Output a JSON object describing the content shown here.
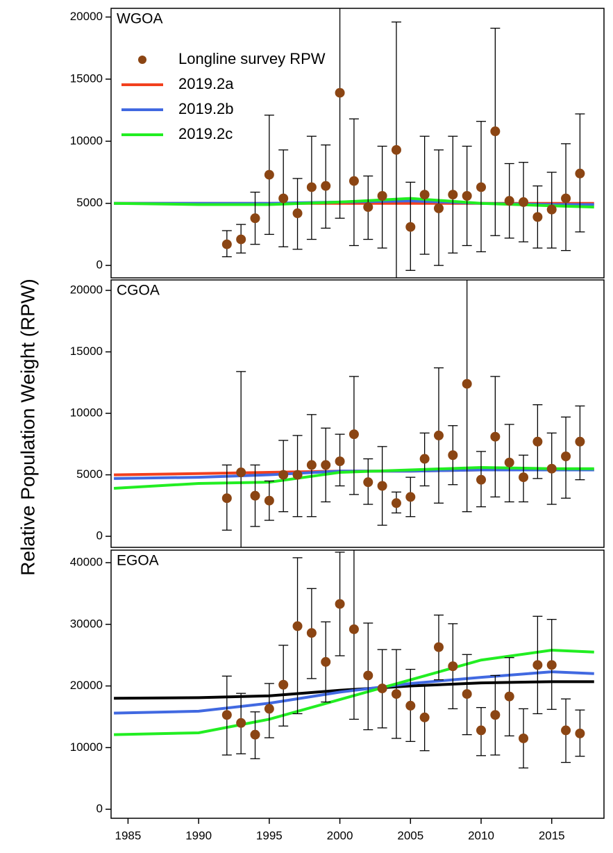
{
  "chart_data": [
    {
      "type": "scatter",
      "title": "WGOA",
      "ylabel": "Relative Population Weight (RPW)",
      "legend": "upper left",
      "xlim": [
        1983.8,
        2018.7
      ],
      "ylim": [
        -1000,
        20700
      ],
      "yticks": [
        0,
        5000,
        10000,
        15000,
        20000
      ],
      "points": {
        "name": "Longline survey RPW",
        "color": "#8b4513",
        "x": [
          1992,
          1993,
          1994,
          1995,
          1996,
          1997,
          1998,
          1999,
          2000,
          2001,
          2002,
          2003,
          2004,
          2005,
          2006,
          2007,
          2008,
          2009,
          2010,
          2011,
          2012,
          2013,
          2014,
          2015,
          2016,
          2017
        ],
        "values": [
          1700,
          2100,
          3800,
          7300,
          5400,
          4200,
          6300,
          6400,
          13900,
          6800,
          4700,
          5600,
          9300,
          3100,
          5700,
          4600,
          5700,
          5600,
          6300,
          10800,
          5200,
          5100,
          3900,
          4500,
          5400,
          7400
        ],
        "lower": [
          700,
          1000,
          1700,
          2500,
          1500,
          1300,
          2100,
          3000,
          3800,
          1600,
          2100,
          1400,
          -1200,
          -400,
          900,
          0,
          1000,
          1600,
          1100,
          2400,
          2200,
          1900,
          1400,
          1400,
          1200,
          2700
        ],
        "upper": [
          2800,
          3300,
          5900,
          12100,
          9300,
          7000,
          10400,
          9700,
          22000,
          11800,
          7200,
          9600,
          19600,
          6700,
          10400,
          9300,
          10400,
          9600,
          11600,
          19100,
          8200,
          8300,
          6400,
          7500,
          9800,
          12200
        ]
      },
      "series": [
        {
          "name": "2019.2a",
          "color": "#f2401e",
          "x": [
            1984,
            1990,
            1995,
            2000,
            2005,
            2010,
            2015,
            2018
          ],
          "values": [
            5000,
            5000,
            5000,
            5000,
            5000,
            5000,
            5000,
            5000
          ]
        },
        {
          "name": "2019.2b",
          "color": "#4169e1",
          "x": [
            1984,
            1990,
            1995,
            2000,
            2005,
            2010,
            2015,
            2018
          ],
          "values": [
            5000,
            5000,
            5000,
            5100,
            5200,
            5000,
            4900,
            4900
          ]
        },
        {
          "name": "2019.2c",
          "color": "#22ee22",
          "x": [
            1984,
            1990,
            1995,
            2000,
            2005,
            2010,
            2015,
            2018
          ],
          "values": [
            5000,
            4900,
            4900,
            5100,
            5400,
            5000,
            4800,
            4700
          ]
        }
      ]
    },
    {
      "type": "scatter",
      "title": "CGOA",
      "xlim": [
        1983.8,
        2018.7
      ],
      "ylim": [
        -900,
        20850
      ],
      "yticks": [
        0,
        5000,
        10000,
        15000,
        20000
      ],
      "points": {
        "color": "#8b4513",
        "x": [
          1992,
          1993,
          1994,
          1995,
          1996,
          1997,
          1998,
          1999,
          2000,
          2001,
          2002,
          2003,
          2004,
          2005,
          2006,
          2007,
          2008,
          2009,
          2010,
          2011,
          2012,
          2013,
          2014,
          2015,
          2016,
          2017
        ],
        "values": [
          3100,
          5200,
          3300,
          2900,
          5000,
          5000,
          5800,
          5800,
          6100,
          8300,
          4400,
          4100,
          2700,
          3200,
          6300,
          8200,
          6600,
          12400,
          4600,
          8100,
          6000,
          4800,
          7700,
          5500,
          6500,
          7700
        ],
        "lower": [
          500,
          -1000,
          800,
          1300,
          2000,
          1600,
          1600,
          2800,
          4100,
          3400,
          2600,
          900,
          1900,
          1600,
          4100,
          2700,
          4200,
          2000,
          2400,
          3200,
          2800,
          2800,
          4700,
          2600,
          3100,
          4600
        ],
        "upper": [
          5800,
          13400,
          5800,
          4500,
          7800,
          8200,
          9900,
          8800,
          8300,
          13000,
          6300,
          7300,
          3600,
          4800,
          8400,
          13700,
          9000,
          22000,
          6900,
          13000,
          9100,
          6600,
          10700,
          8400,
          9700,
          10600
        ]
      },
      "series": [
        {
          "color": "#f2401e",
          "x": [
            1984,
            1990,
            1995,
            2000,
            2005,
            2010,
            2015,
            2018
          ],
          "values": [
            5000,
            5100,
            5200,
            5300,
            5300,
            5400,
            5400,
            5400
          ]
        },
        {
          "color": "#4169e1",
          "x": [
            1984,
            1990,
            1995,
            2000,
            2005,
            2010,
            2015,
            2018
          ],
          "values": [
            4700,
            4800,
            5000,
            5300,
            5300,
            5400,
            5400,
            5400
          ]
        },
        {
          "color": "#22ee22",
          "x": [
            1984,
            1990,
            1995,
            2000,
            2005,
            2010,
            2015,
            2018
          ],
          "values": [
            3900,
            4300,
            4400,
            5200,
            5400,
            5600,
            5500,
            5500
          ]
        }
      ]
    },
    {
      "type": "scatter",
      "title": "EGOA",
      "xlim": [
        1983.8,
        2018.7
      ],
      "ylim": [
        -1460,
        42030
      ],
      "yticks": [
        0,
        10000,
        20000,
        30000,
        40000
      ],
      "xticks": [
        1985,
        1990,
        1995,
        2000,
        2005,
        2010,
        2015
      ],
      "points": {
        "color": "#8b4513",
        "x": [
          1992,
          1993,
          1994,
          1995,
          1996,
          1997,
          1998,
          1999,
          2000,
          2001,
          2002,
          2003,
          2004,
          2005,
          2006,
          2007,
          2008,
          2009,
          2010,
          2011,
          2012,
          2013,
          2014,
          2015,
          2016,
          2017
        ],
        "values": [
          15300,
          14000,
          12100,
          16300,
          20200,
          29700,
          28600,
          23900,
          33300,
          29200,
          21700,
          19600,
          18700,
          16800,
          14900,
          26300,
          23200,
          18700,
          12800,
          15300,
          18300,
          11500,
          23400,
          23400,
          12800,
          12300
        ],
        "lower": [
          8800,
          9000,
          8200,
          11600,
          13500,
          15500,
          21200,
          17400,
          24900,
          14600,
          12900,
          13200,
          11500,
          11000,
          9500,
          21000,
          16300,
          12100,
          8700,
          8800,
          11900,
          6700,
          15500,
          16200,
          7600,
          8600
        ],
        "upper": [
          21600,
          18800,
          15800,
          20400,
          26600,
          40800,
          35800,
          30400,
          41700,
          43000,
          30200,
          25900,
          25900,
          22700,
          20200,
          31500,
          30100,
          25100,
          16500,
          21700,
          24600,
          16300,
          31300,
          30800,
          17900,
          16100
        ]
      },
      "series": [
        {
          "color": "#000000",
          "x": [
            1984,
            1990,
            1995,
            2000,
            2005,
            2010,
            2015,
            2018
          ],
          "values": [
            18000,
            18100,
            18400,
            19300,
            20000,
            20500,
            20700,
            20700
          ]
        },
        {
          "color": "#4169e1",
          "x": [
            1984,
            1990,
            1995,
            2000,
            2005,
            2010,
            2015,
            2018
          ],
          "values": [
            15600,
            15900,
            17200,
            19000,
            20400,
            21400,
            22300,
            22000
          ]
        },
        {
          "color": "#22ee22",
          "x": [
            1984,
            1990,
            1995,
            2000,
            2005,
            2010,
            2015,
            2018
          ],
          "values": [
            12100,
            12400,
            14600,
            17800,
            21000,
            24200,
            25800,
            25500
          ]
        }
      ]
    }
  ]
}
